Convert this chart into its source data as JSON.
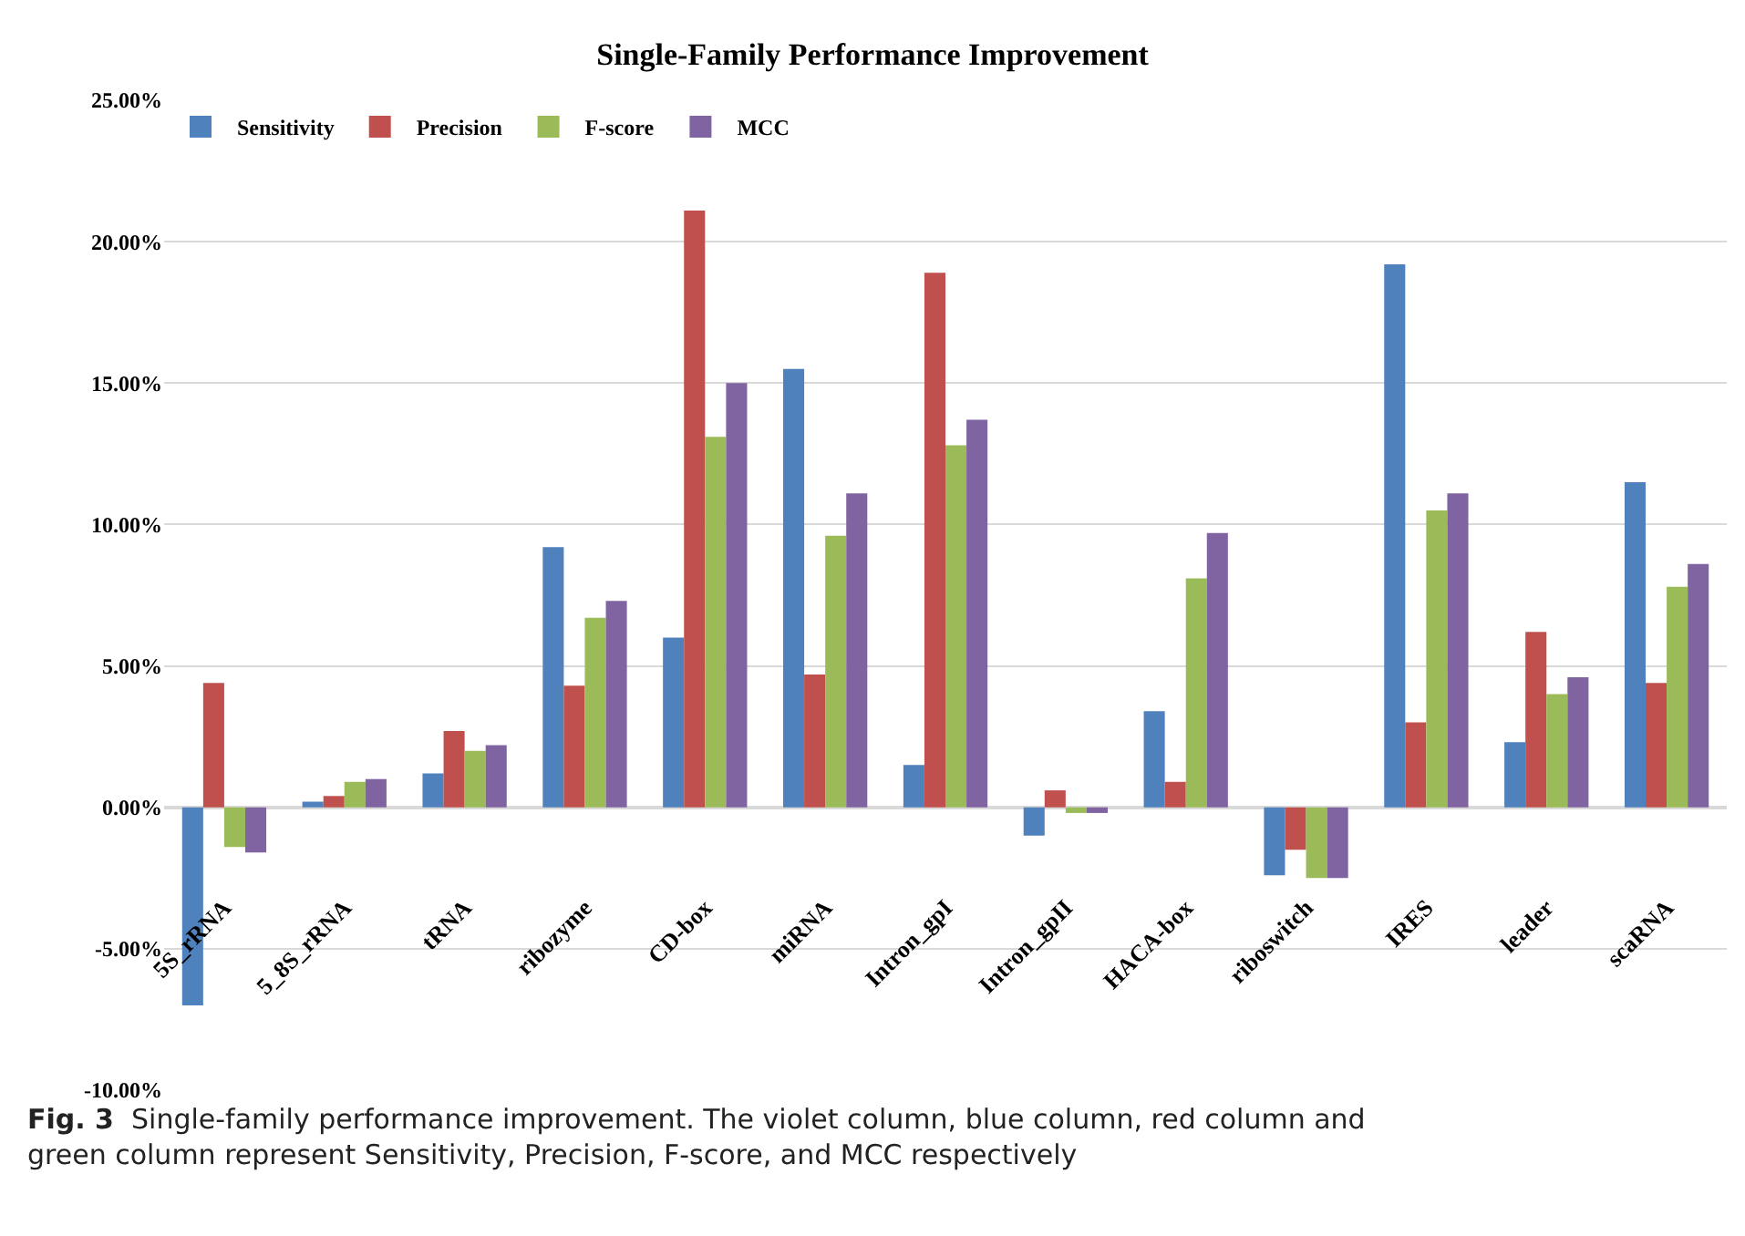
{
  "chart_data": {
    "type": "bar",
    "title": "Single-Family Performance Improvement",
    "categories": [
      "5S_rRNA",
      "5_8S_rRNA",
      "tRNA",
      "ribozyme",
      "CD-box",
      "miRNA",
      "Intron_gpI",
      "Intron_gpII",
      "HACA-box",
      "riboswitch",
      "IRES",
      "leader",
      "scaRNA"
    ],
    "series": [
      {
        "name": "Sensitivity",
        "color": "#4f81bd",
        "values": [
          -7.0,
          0.2,
          1.2,
          9.2,
          6.0,
          15.5,
          1.5,
          -1.0,
          3.4,
          -2.4,
          19.2,
          2.3,
          11.5
        ]
      },
      {
        "name": "Precision",
        "color": "#c0504d",
        "values": [
          4.4,
          0.4,
          2.7,
          4.3,
          21.1,
          4.7,
          18.9,
          0.6,
          0.9,
          -1.5,
          3.0,
          6.2,
          4.4
        ]
      },
      {
        "name": "F-score",
        "color": "#9bbb59",
        "values": [
          -1.4,
          0.9,
          2.0,
          6.7,
          13.1,
          9.6,
          12.8,
          -0.2,
          8.1,
          -2.5,
          10.5,
          4.0,
          7.8
        ]
      },
      {
        "name": "MCC",
        "color": "#8064a2",
        "values": [
          -1.6,
          1.0,
          2.2,
          7.3,
          15.0,
          11.1,
          13.7,
          -0.2,
          9.7,
          -2.5,
          11.1,
          4.6,
          8.6
        ]
      }
    ],
    "ylim": [
      -10,
      25
    ],
    "yticks": [
      {
        "value": -10,
        "label": "-10.00%"
      },
      {
        "value": -5,
        "label": "-5.00%"
      },
      {
        "value": 0,
        "label": "0.00%"
      },
      {
        "value": 5,
        "label": "5.00%"
      },
      {
        "value": 10,
        "label": "10.00%"
      },
      {
        "value": 15,
        "label": "15.00%"
      },
      {
        "value": 20,
        "label": "20.00%"
      },
      {
        "value": 25,
        "label": "25.00%"
      }
    ],
    "grid": "y",
    "legend": "top left",
    "annotations": [
      "**Fig. 3**  Single-family performance improvement. The violet column, blue column, red column and green column represent Sensitivity, Precision, F-score, and MCC respectively"
    ]
  }
}
